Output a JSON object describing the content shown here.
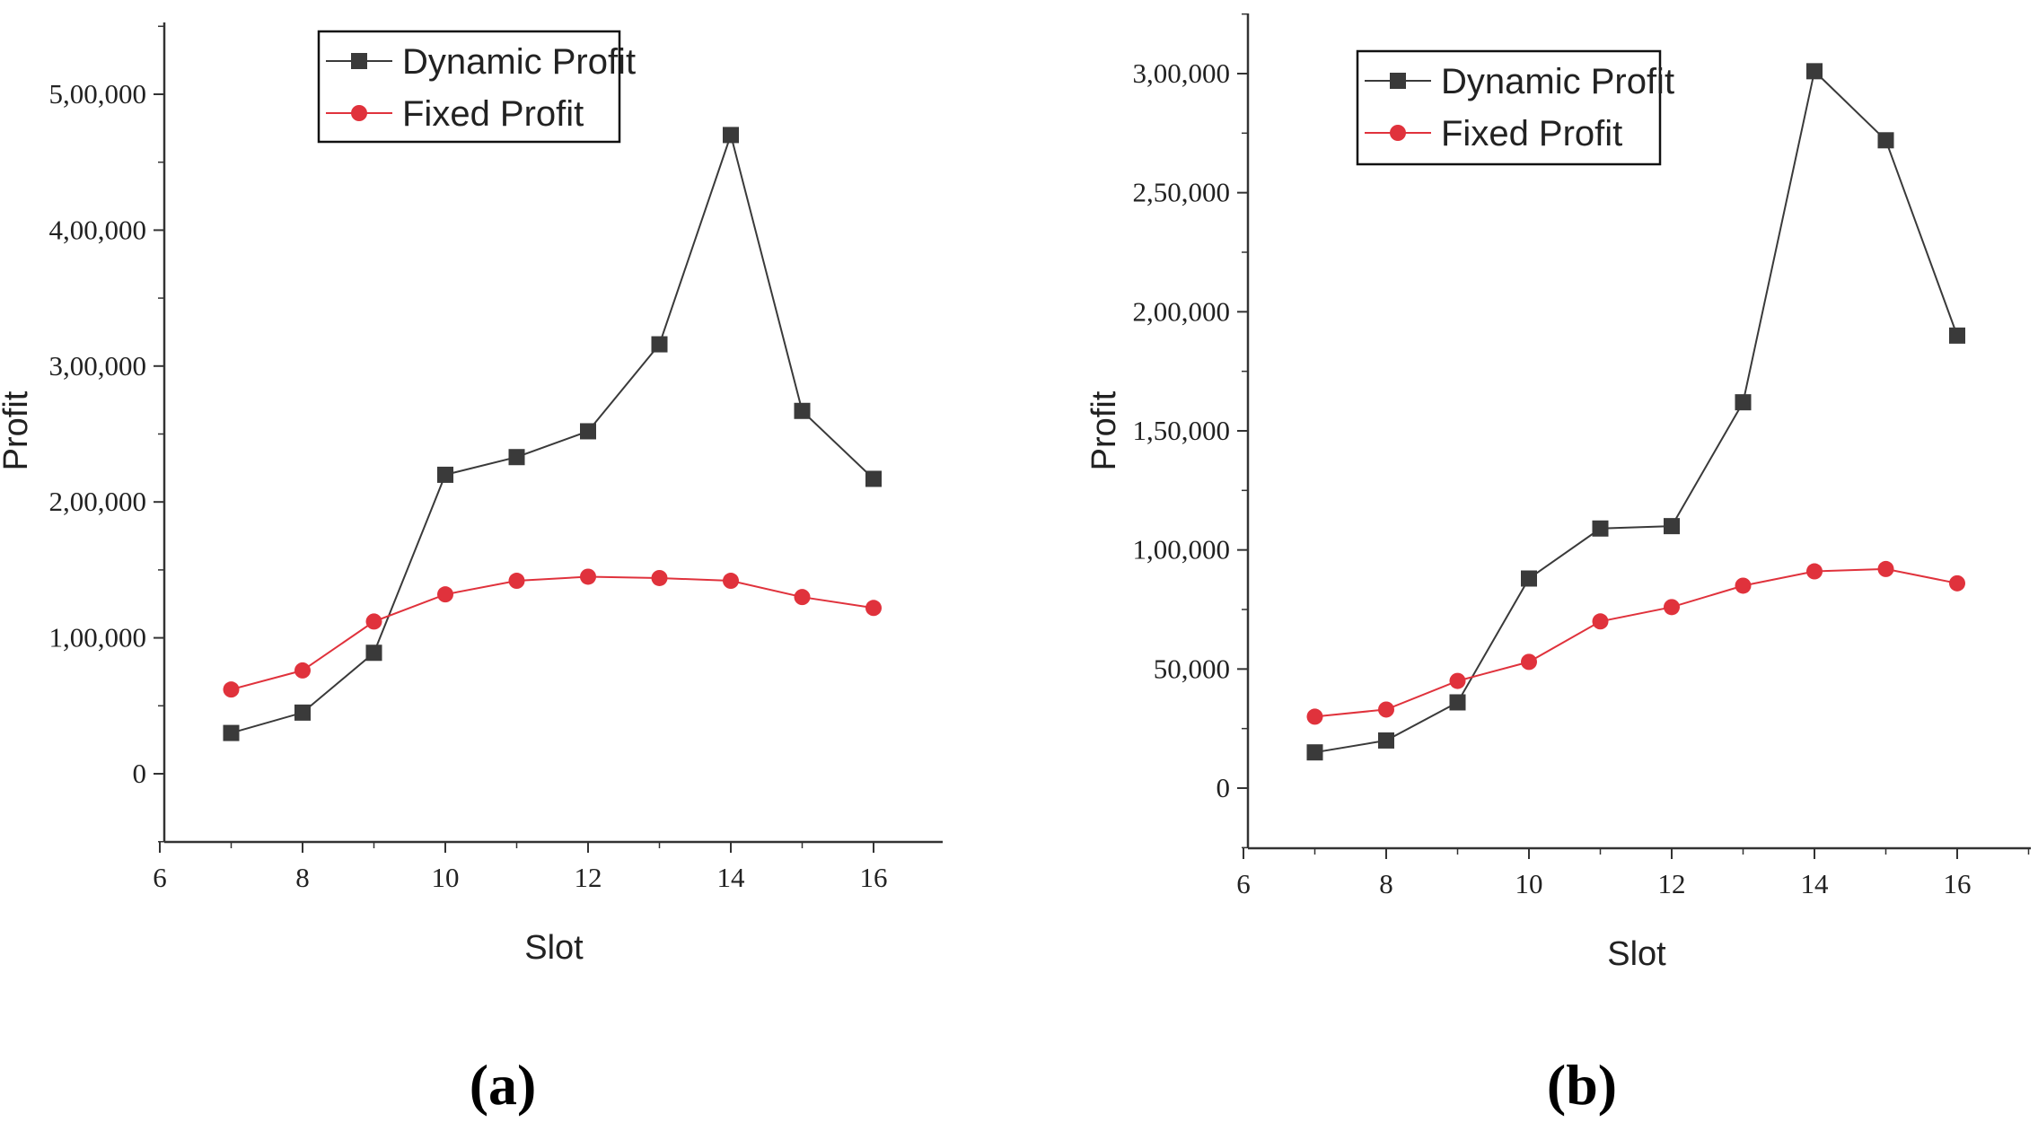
{
  "chart_data": [
    {
      "type": "line",
      "panel_label": "(a)",
      "xlabel": "Slot",
      "ylabel": "Profit",
      "xlim": [
        6,
        17
      ],
      "ylim": [
        -50000,
        550000
      ],
      "xticks": [
        6,
        8,
        10,
        12,
        14,
        16
      ],
      "xtick_labels": [
        "6",
        "8",
        "10",
        "12",
        "14",
        "16"
      ],
      "yticks": [
        0,
        100000,
        200000,
        300000,
        400000,
        500000
      ],
      "ytick_labels": [
        "0",
        "1,00,000",
        "2,00,000",
        "3,00,000",
        "4,00,000",
        "5,00,000"
      ],
      "x": [
        7,
        8,
        9,
        10,
        11,
        12,
        13,
        14,
        15,
        16
      ],
      "legend_position": "top-center",
      "series": [
        {
          "name": "Dynamic Profit",
          "color": "#3a3a3a",
          "marker": "square",
          "values": [
            30000,
            45000,
            89000,
            220000,
            233000,
            252000,
            316000,
            470000,
            267000,
            217000
          ]
        },
        {
          "name": "Fixed Profit",
          "color": "#e0323c",
          "marker": "circle",
          "values": [
            62000,
            76000,
            112000,
            132000,
            142000,
            145000,
            144000,
            142000,
            130000,
            122000
          ]
        }
      ]
    },
    {
      "type": "line",
      "panel_label": "(b)",
      "xlabel": "Slot",
      "ylabel": "Profit",
      "xlim": [
        6,
        17
      ],
      "ylim": [
        -25000,
        325000
      ],
      "xticks": [
        6,
        8,
        10,
        12,
        14,
        16
      ],
      "xtick_labels": [
        "6",
        "8",
        "10",
        "12",
        "14",
        "16"
      ],
      "yticks": [
        0,
        50000,
        100000,
        150000,
        200000,
        250000,
        300000
      ],
      "ytick_labels": [
        "0",
        "50,000",
        "1,00,000",
        "1,50,000",
        "2,00,000",
        "2,50,000",
        "3,00,000"
      ],
      "x": [
        7,
        8,
        9,
        10,
        11,
        12,
        13,
        14,
        15,
        16
      ],
      "legend_position": "top-left",
      "series": [
        {
          "name": "Dynamic Profit",
          "color": "#3a3a3a",
          "marker": "square",
          "values": [
            15000,
            20000,
            36000,
            88000,
            109000,
            110000,
            162000,
            301000,
            272000,
            190000
          ]
        },
        {
          "name": "Fixed Profit",
          "color": "#e0323c",
          "marker": "circle",
          "values": [
            30000,
            33000,
            45000,
            53000,
            70000,
            76000,
            85000,
            91000,
            92000,
            86000
          ]
        }
      ]
    }
  ]
}
